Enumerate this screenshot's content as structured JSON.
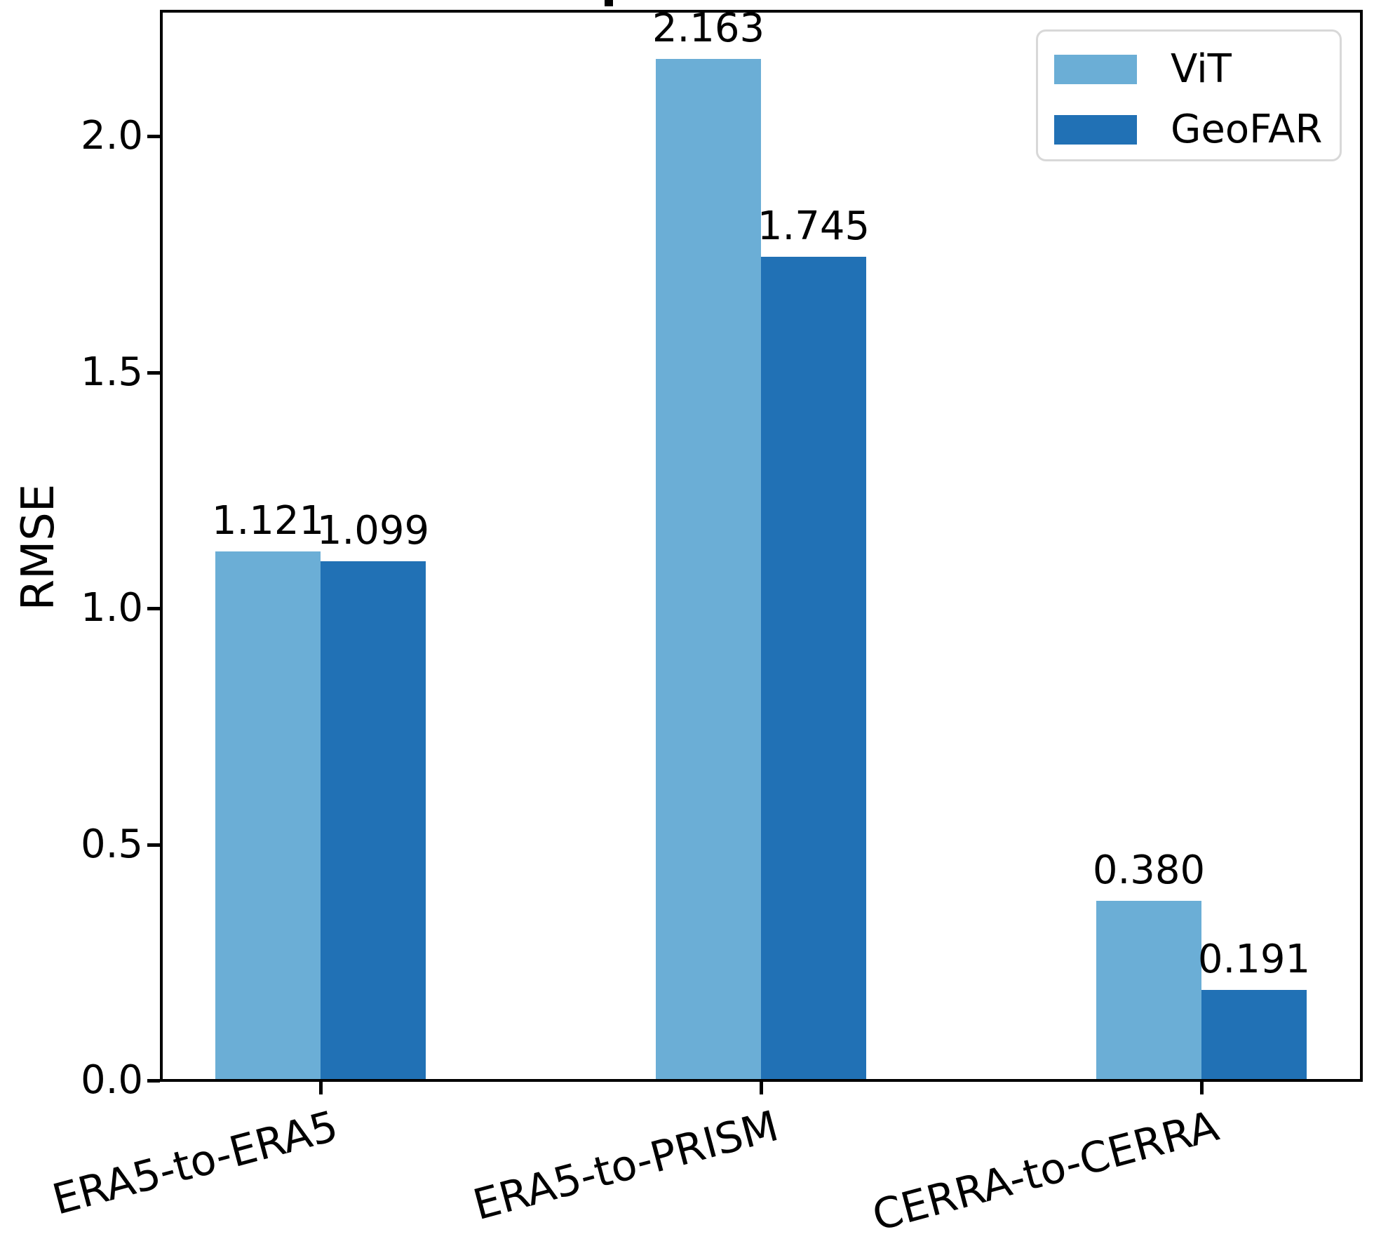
{
  "chart_data": {
    "type": "bar",
    "categories": [
      "ERA5-to-ERA5",
      "ERA5-to-PRISM",
      "CERRA-to-CERRA"
    ],
    "series": [
      {
        "name": "ViT",
        "color": "#6baed6",
        "values": [
          1.121,
          2.163,
          0.38
        ],
        "value_labels": [
          "1.121",
          "2.163",
          "0.380"
        ]
      },
      {
        "name": "GeoFAR",
        "color": "#2171b5",
        "values": [
          1.099,
          1.745,
          0.191
        ],
        "value_labels": [
          "1.099",
          "1.745",
          "0.191"
        ]
      }
    ],
    "ylabel": "RMSE",
    "xlabel": "",
    "yticks": [
      0.0,
      0.5,
      1.0,
      1.5,
      2.0
    ],
    "ytick_labels": [
      "0.0",
      "0.5",
      "1.0",
      "1.5",
      "2.0"
    ],
    "ylim": [
      0,
      2.27
    ],
    "grid": false,
    "legend": {
      "entries": [
        "ViT",
        "GeoFAR"
      ],
      "position": "upper-right"
    },
    "x_tick_rotation_deg": -15
  }
}
